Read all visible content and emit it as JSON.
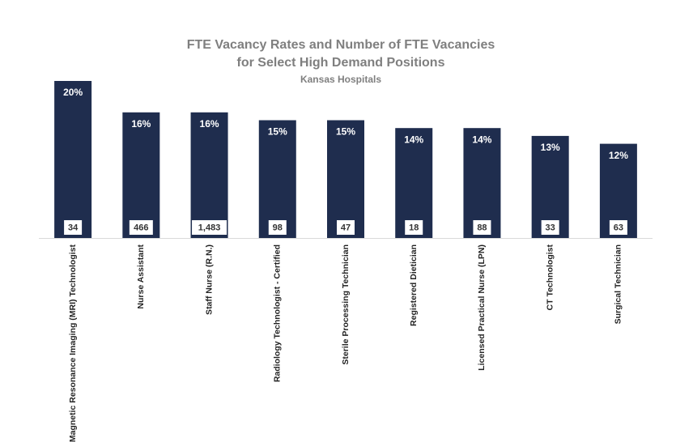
{
  "chart_data": {
    "type": "bar",
    "title_lines": [
      "FTE Vacancy Rates and Number of FTE Vacancies",
      "for Select High Demand Positions"
    ],
    "subtitle": "Kansas Hospitals",
    "categories": [
      "Magnetic Resonance Imaging (MRI) Technologist",
      "Nurse Assistant",
      "Staff Nurse (R.N.)",
      "Radiology Technologist - Certified",
      "Sterile Processing Technician",
      "Registered Dietician",
      "Licensed Practical Nurse (LPN)",
      "CT Technologist",
      "Surgical Technician"
    ],
    "values": [
      20,
      16,
      16,
      15,
      15,
      14,
      14,
      13,
      12
    ],
    "value_labels": [
      "20%",
      "16%",
      "16%",
      "15%",
      "15%",
      "14%",
      "14%",
      "13%",
      "12%"
    ],
    "color": "#1f2d4e",
    "vacancies": {
      "values": [
        34,
        466,
        1483,
        98,
        47,
        18,
        88,
        33,
        63
      ],
      "value_labels": [
        "34",
        "466",
        "1,483",
        "98",
        "47",
        "18",
        "88",
        "33",
        "63"
      ]
    }
  }
}
